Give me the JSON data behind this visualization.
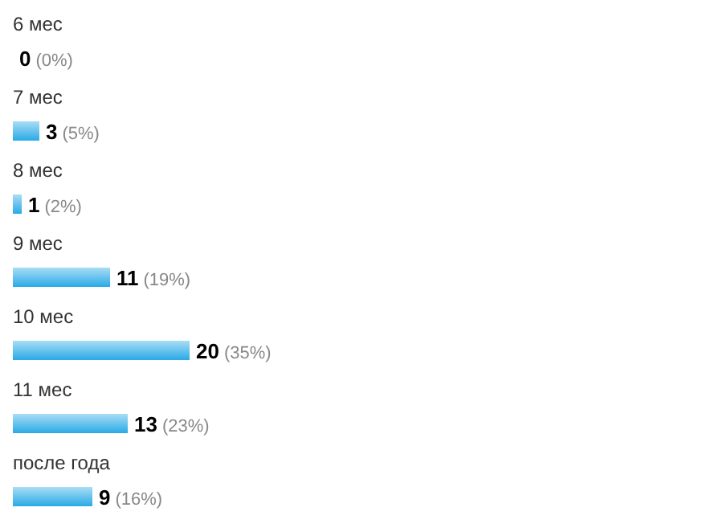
{
  "chart_data": {
    "type": "bar",
    "orientation": "horizontal",
    "categories": [
      "6 мес",
      "7 мес",
      "8 мес",
      "9 мес",
      "10 мес",
      "11 мес",
      "после года"
    ],
    "values": [
      0,
      3,
      1,
      11,
      20,
      13,
      9
    ],
    "value_labels": [
      "0 (0%)",
      "3 (5%)",
      "1 (2%)",
      "11 (19%)",
      "20 (35%)",
      "13 (23%)",
      "9 (16%)"
    ],
    "color": "#29aae6"
  }
}
